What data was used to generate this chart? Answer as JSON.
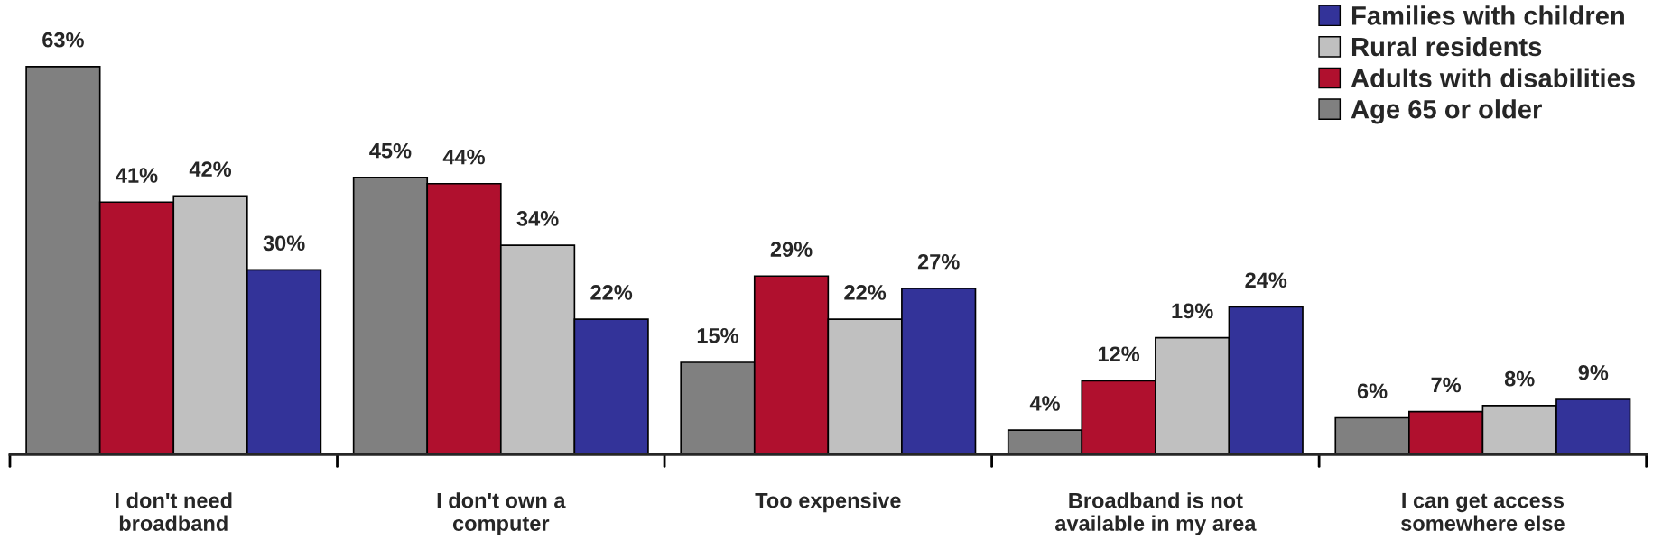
{
  "chart_data": {
    "type": "bar",
    "categories": [
      "I don't need\nbroadband",
      "I don't own a\ncomputer",
      "Too expensive",
      "Broadband is not\navailable in my area",
      "I can get access\nsomewhere else"
    ],
    "series": [
      {
        "name": "Age 65 or older",
        "color": "#808080",
        "values": [
          63,
          45,
          15,
          4,
          6
        ],
        "value_labels": [
          "63%",
          "45%",
          "15%",
          "4%",
          "6%"
        ]
      },
      {
        "name": "Adults with disabilities",
        "color": "#b0102e",
        "values": [
          41,
          44,
          29,
          12,
          7
        ],
        "value_labels": [
          "41%",
          "44%",
          "29%",
          "12%",
          "7%"
        ]
      },
      {
        "name": "Rural residents",
        "color": "#c0c0c0",
        "values": [
          42,
          34,
          22,
          19,
          8
        ],
        "value_labels": [
          "42%",
          "34%",
          "22%",
          "19%",
          "8%"
        ]
      },
      {
        "name": "Families with children",
        "color": "#333399",
        "values": [
          30,
          22,
          27,
          24,
          9
        ],
        "value_labels": [
          "30%",
          "22%",
          "27%",
          "24%",
          "9%"
        ]
      }
    ],
    "legend": "top right",
    "grid": false
  }
}
